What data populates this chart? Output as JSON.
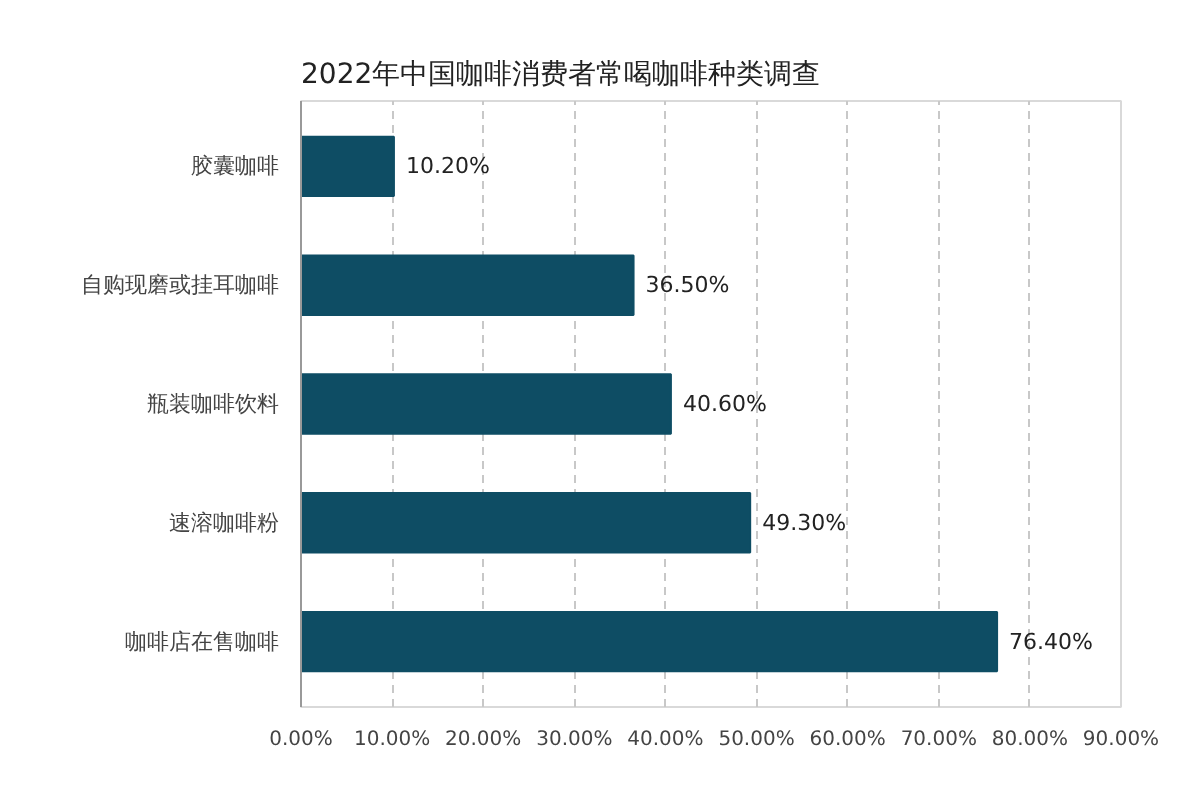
{
  "chart_data": {
    "type": "bar",
    "orientation": "horizontal",
    "title": "2022年中国咖啡消费者常喝咖啡种类调查",
    "categories": [
      "胶囊咖啡",
      "自购现磨或挂耳咖啡",
      "瓶装咖啡饮料",
      "速溶咖啡粉",
      "咖啡店在售咖啡"
    ],
    "values": [
      10.2,
      36.5,
      40.6,
      49.3,
      76.4
    ],
    "value_labels": [
      "10.20%",
      "36.50%",
      "40.60%",
      "49.30%",
      "76.40%"
    ],
    "color": "#0e4d64",
    "xlim": [
      0,
      90
    ],
    "xticks": [
      {
        "value": 0,
        "label": "0.00%"
      },
      {
        "value": 10,
        "label": "10.00%"
      },
      {
        "value": 20,
        "label": "20.00%"
      },
      {
        "value": 30,
        "label": "30.00%"
      },
      {
        "value": 40,
        "label": "40.00%"
      },
      {
        "value": 50,
        "label": "50.00%"
      },
      {
        "value": 60,
        "label": "60.00%"
      },
      {
        "value": 70,
        "label": "70.00%"
      },
      {
        "value": 80,
        "label": "80.00%"
      },
      {
        "value": 90,
        "label": "90.00%"
      }
    ],
    "grid": "x"
  }
}
